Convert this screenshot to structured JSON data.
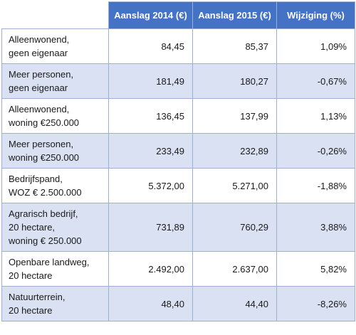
{
  "table": {
    "headers": [
      "",
      "Aanslag 2014 (€)",
      "Aanslag 2015 (€)",
      "Wijziging (%)"
    ],
    "rows": [
      {
        "label_lines": [
          "Alleenwonend,",
          "geen eigenaar"
        ],
        "v2014": "84,45",
        "v2015": "85,37",
        "change": "1,09%"
      },
      {
        "label_lines": [
          "Meer personen,",
          "geen eigenaar"
        ],
        "v2014": "181,49",
        "v2015": "180,27",
        "change": "-0,67%"
      },
      {
        "label_lines": [
          "Alleenwonend,",
          "woning €250.000"
        ],
        "v2014": "136,45",
        "v2015": "137,99",
        "change": "1,13%"
      },
      {
        "label_lines": [
          "Meer personen,",
          "woning €250.000"
        ],
        "v2014": "233,49",
        "v2015": "232,89",
        "change": "-0,26%"
      },
      {
        "label_lines": [
          "Bedrijfspand,",
          "WOZ € 2.500.000"
        ],
        "v2014": "5.372,00",
        "v2015": "5.271,00",
        "change": "-1,88%"
      },
      {
        "label_lines": [
          "Agrarisch bedrijf,",
          "20 hectare,",
          "woning € 250.000"
        ],
        "v2014": "731,89",
        "v2015": "760,29",
        "change": "3,88%"
      },
      {
        "label_lines": [
          "Openbare landweg,",
          "20 hectare"
        ],
        "v2014": "2.492,00",
        "v2015": "2.637,00",
        "change": "5,82%"
      },
      {
        "label_lines": [
          "Natuurterrein,",
          "20 hectare"
        ],
        "v2014": "48,40",
        "v2015": "44,40",
        "change": "-8,26%"
      }
    ]
  }
}
